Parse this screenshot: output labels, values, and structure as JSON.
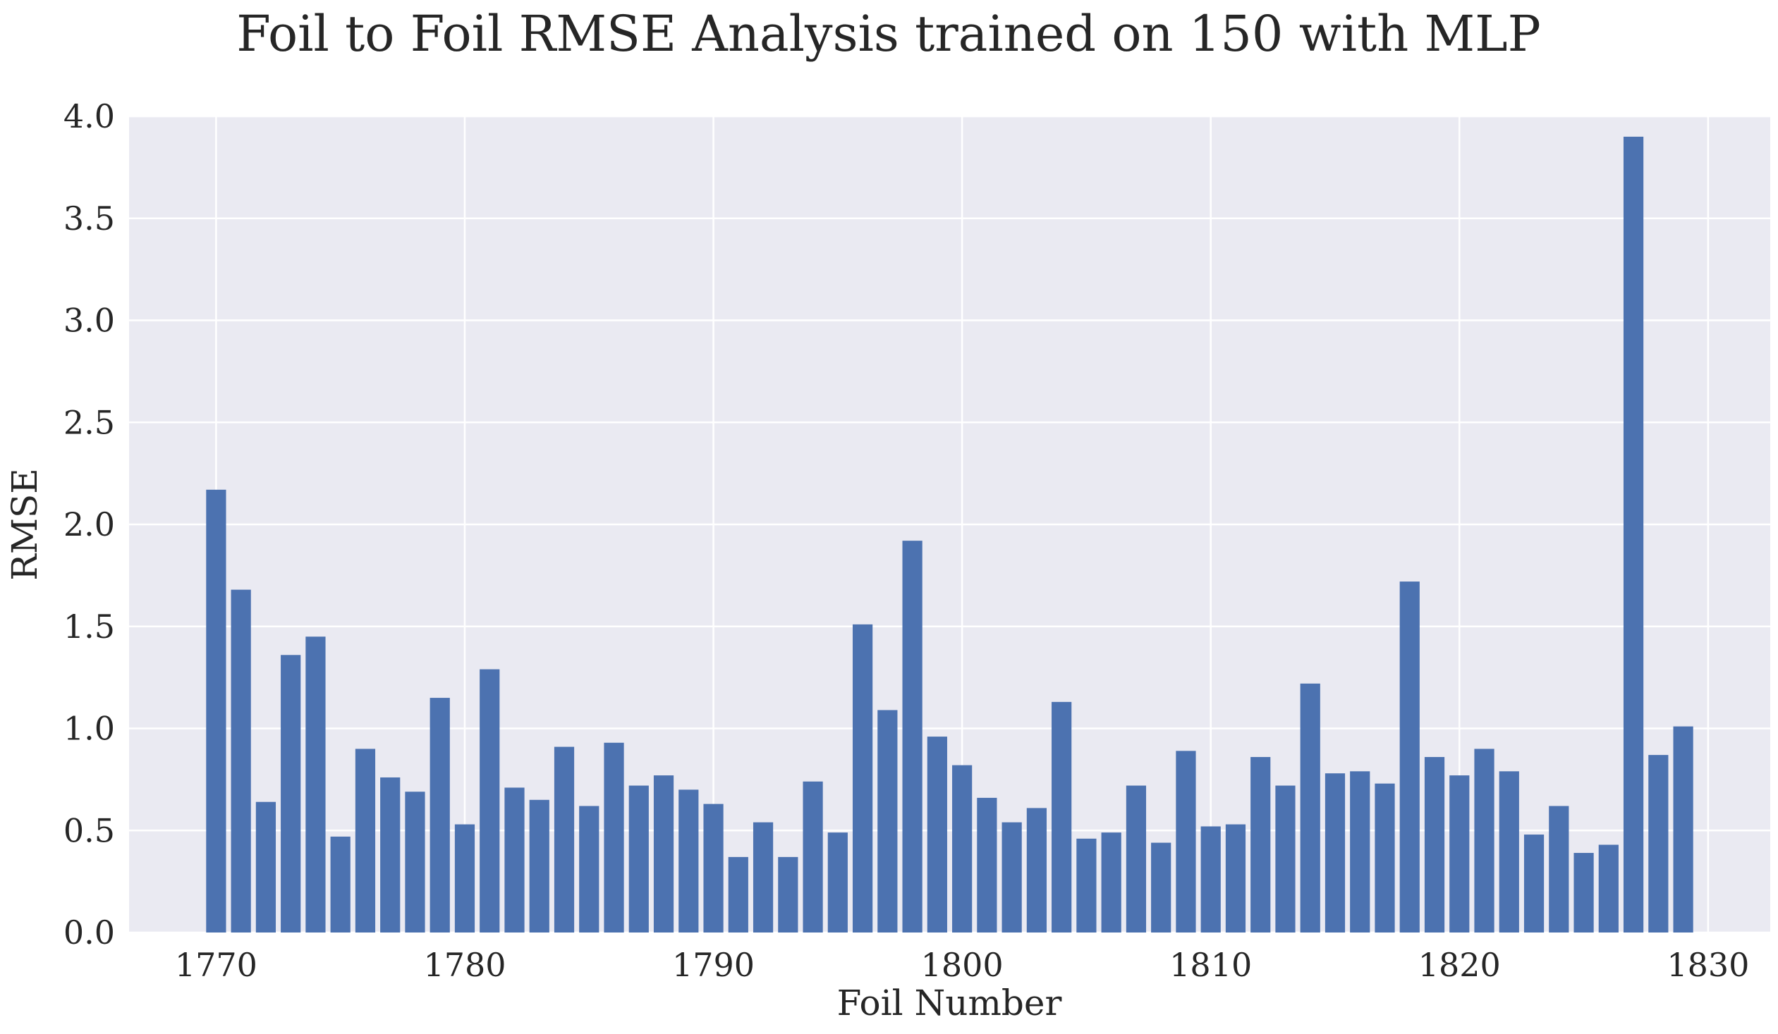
{
  "chart_data": {
    "type": "bar",
    "title": "Foil to Foil RMSE Analysis  trained on 150 with MLP",
    "xlabel": "Foil Number",
    "ylabel": "RMSE",
    "x": [
      1770,
      1771,
      1772,
      1773,
      1774,
      1775,
      1776,
      1777,
      1778,
      1779,
      1780,
      1781,
      1782,
      1783,
      1784,
      1785,
      1786,
      1787,
      1788,
      1789,
      1790,
      1791,
      1792,
      1793,
      1794,
      1795,
      1796,
      1797,
      1798,
      1799,
      1800,
      1801,
      1802,
      1803,
      1804,
      1805,
      1806,
      1807,
      1808,
      1809,
      1810,
      1811,
      1812,
      1813,
      1814,
      1815,
      1816,
      1817,
      1818,
      1819,
      1820,
      1821,
      1822,
      1823,
      1824,
      1825,
      1826,
      1827,
      1828,
      1829
    ],
    "values": [
      2.17,
      1.68,
      0.64,
      1.36,
      1.45,
      0.47,
      0.9,
      0.76,
      0.69,
      1.15,
      0.53,
      1.29,
      0.71,
      0.65,
      0.91,
      0.62,
      0.93,
      0.72,
      0.77,
      0.7,
      0.63,
      0.37,
      0.54,
      0.37,
      0.74,
      0.49,
      1.51,
      1.09,
      1.92,
      0.96,
      0.82,
      0.66,
      0.54,
      0.61,
      1.13,
      0.46,
      0.49,
      0.72,
      0.44,
      0.89,
      0.52,
      0.53,
      0.86,
      0.72,
      1.22,
      0.78,
      0.79,
      0.73,
      1.72,
      0.86,
      0.77,
      0.9,
      0.79,
      0.48,
      0.62,
      0.39,
      0.43,
      3.9,
      0.87,
      1.01
    ],
    "xlim": [
      1766.5,
      1832.5
    ],
    "ylim": [
      0,
      4.0
    ],
    "xticks": [
      1770,
      1780,
      1790,
      1800,
      1810,
      1820,
      1830
    ],
    "yticks": [
      "0.0",
      "0.5",
      "1.0",
      "1.5",
      "2.0",
      "2.5",
      "3.0",
      "3.5",
      "4.0"
    ],
    "bar_color": "#4c72b0",
    "background_color": "#eaeaf2",
    "grid": true,
    "legend": "none"
  }
}
